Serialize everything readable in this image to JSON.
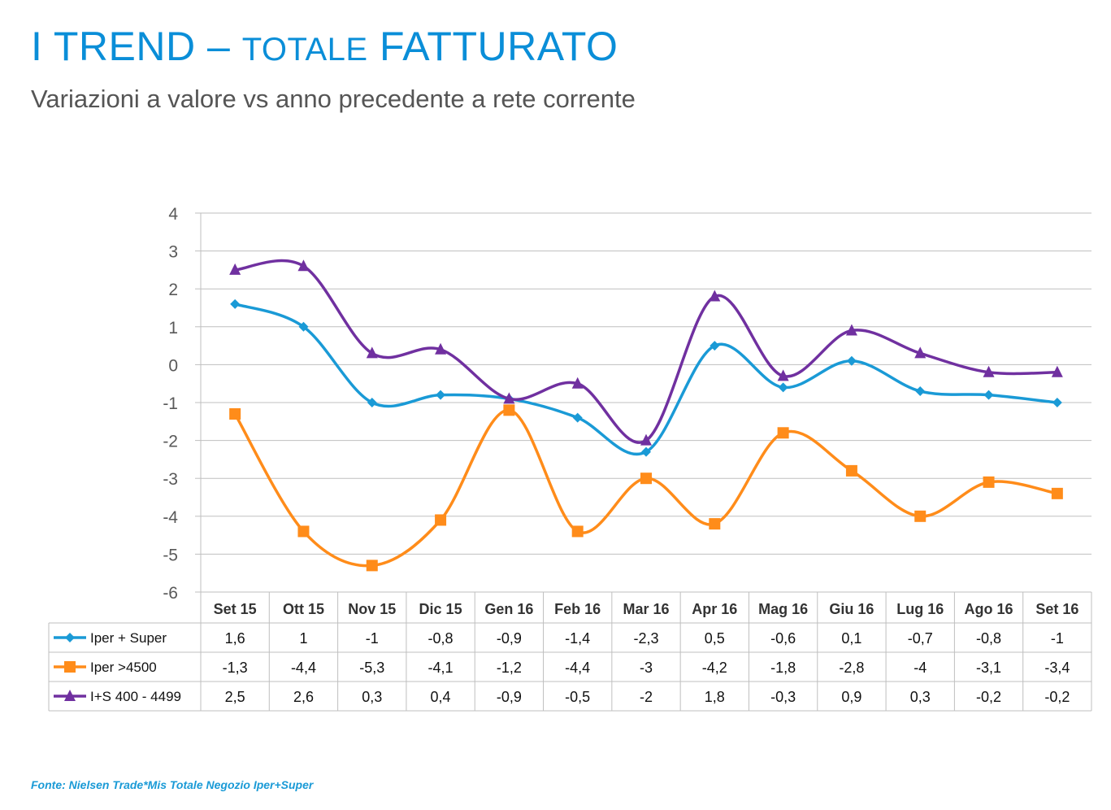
{
  "header": {
    "title_main": "I TREND – ",
    "title_small": "TOTALE",
    "title_end": " FATTURATO",
    "subtitle": "Variazioni a valore vs anno precedente a rete corrente"
  },
  "footer": {
    "source": "Fonte: Nielsen Trade*Mis Totale Negozio  Iper+Super"
  },
  "chart_data": {
    "type": "line",
    "title": "I TREND – TOTALE FATTURATO",
    "subtitle": "Variazioni a valore vs anno precedente a rete corrente",
    "ylim": [
      -6,
      4
    ],
    "yticks": [
      4,
      3,
      2,
      1,
      0,
      -1,
      -2,
      -3,
      -4,
      -5,
      -6
    ],
    "grid": true,
    "legend": "data-table-left",
    "categories": [
      "Set 15",
      "Ott 15",
      "Nov 15",
      "Dic 15",
      "Gen 16",
      "Feb 16",
      "Mar 16",
      "Apr 16",
      "Mag 16",
      "Giu 16",
      "Lug 16",
      "Ago 16",
      "Set 16"
    ],
    "series": [
      {
        "name": "Iper + Super",
        "color": "#1a9ad6",
        "marker": "diamond",
        "values": [
          1.6,
          1,
          -1,
          -0.8,
          -0.9,
          -1.4,
          -2.3,
          0.5,
          -0.6,
          0.1,
          -0.7,
          -0.8,
          -1
        ],
        "labels": [
          "1,6",
          "1",
          "-1",
          "-0,8",
          "-0,9",
          "-1,4",
          "-2,3",
          "0,5",
          "-0,6",
          "0,1",
          "-0,7",
          "-0,8",
          "-1"
        ]
      },
      {
        "name": "Iper >4500",
        "color": "#ff8c1a",
        "marker": "square",
        "values": [
          -1.3,
          -4.4,
          -5.3,
          -4.1,
          -1.2,
          -4.4,
          -3,
          -4.2,
          -1.8,
          -2.8,
          -4,
          -3.1,
          -3.4
        ],
        "labels": [
          "-1,3",
          "-4,4",
          "-5,3",
          "-4,1",
          "-1,2",
          "-4,4",
          "-3",
          "-4,2",
          "-1,8",
          "-2,8",
          "-4",
          "-3,1",
          "-3,4"
        ]
      },
      {
        "name": "I+S 400 - 4499",
        "color": "#7030a0",
        "marker": "triangle",
        "values": [
          2.5,
          2.6,
          0.3,
          0.4,
          -0.9,
          -0.5,
          -2,
          1.8,
          -0.3,
          0.9,
          0.3,
          -0.2,
          -0.2
        ],
        "labels": [
          "2,5",
          "2,6",
          "0,3",
          "0,4",
          "-0,9",
          "-0,5",
          "-2",
          "1,8",
          "-0,3",
          "0,9",
          "0,3",
          "-0,2",
          "-0,2"
        ]
      }
    ]
  }
}
